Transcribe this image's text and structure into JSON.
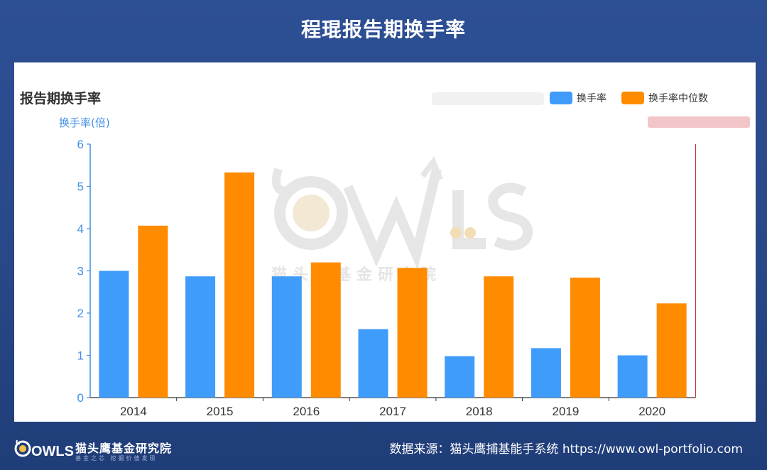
{
  "page": {
    "title": "程琨报告期换手率",
    "footer_org": "猫头鹰基金研究院",
    "footer_org_sub": "基金之芯 挖掘价值发现",
    "footer_source": "数据来源：猫头鹰捕基能手系统  https://www.owl-portfolio.com",
    "watermark_text": "猫头鹰基金研究院",
    "logo_text": "OWLS"
  },
  "colors": {
    "turnover": "#3f9cfb",
    "median": "#ff8c00",
    "axis_left": "#3f8fe6",
    "axis_right": "#c23531",
    "background": "#2d4f94"
  },
  "chart_data": {
    "type": "bar",
    "title": "报告期换手率",
    "ylabel": "换手率(倍)",
    "categories": [
      "2014",
      "2015",
      "2016",
      "2017",
      "2018",
      "2019",
      "2020"
    ],
    "series": [
      {
        "name": "换手率",
        "values": [
          3.0,
          2.87,
          2.87,
          1.62,
          0.98,
          1.17,
          1.0
        ]
      },
      {
        "name": "换手率中位数",
        "values": [
          4.07,
          5.33,
          3.2,
          3.07,
          2.87,
          2.84,
          2.23
        ]
      }
    ],
    "ylim": [
      0,
      6
    ],
    "yticks": [
      "0",
      "1",
      "2",
      "3",
      "4",
      "5",
      "6"
    ],
    "legend_position": "top-right",
    "grid": false
  }
}
